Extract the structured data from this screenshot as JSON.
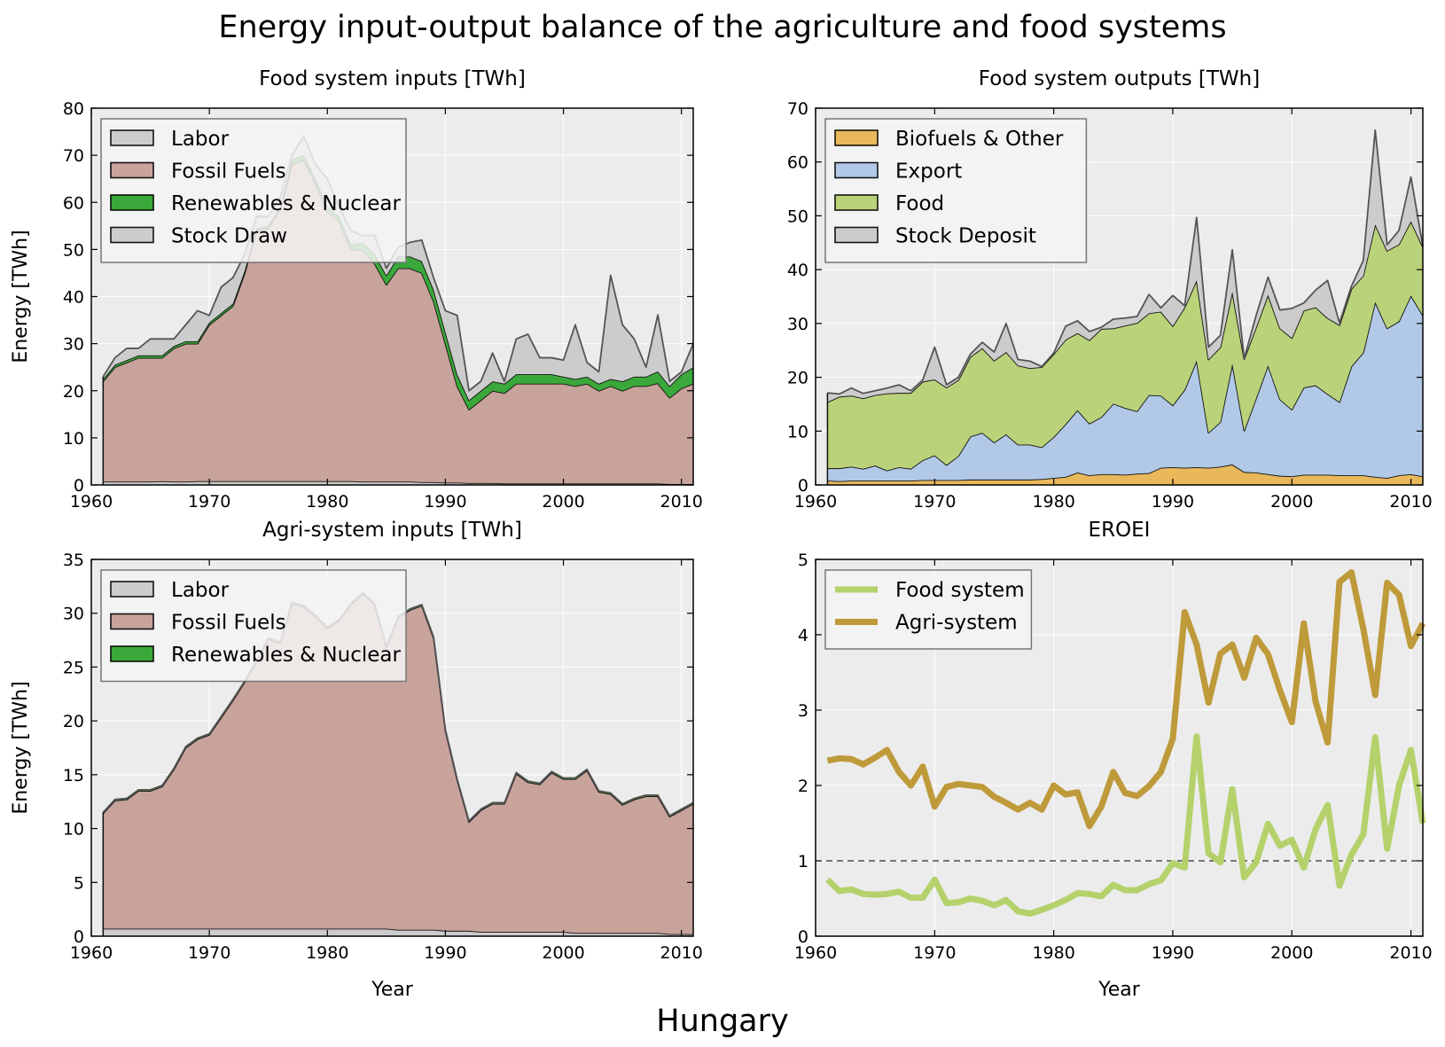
{
  "figure": {
    "title": "Energy input-output balance of the agriculture and food systems",
    "footer": "Hungary"
  },
  "chart_data": [
    {
      "type": "area",
      "stacked": true,
      "title": "Food system inputs [TWh]",
      "xlabel": "",
      "ylabel": "Energy [TWh]",
      "xlim": [
        1960,
        2011
      ],
      "ylim": [
        0,
        80
      ],
      "xticks": [
        1960,
        1970,
        1980,
        1990,
        2000,
        2010
      ],
      "yticks": [
        0,
        10,
        20,
        30,
        40,
        50,
        60,
        70,
        80
      ],
      "grid": true,
      "legend": "top-left",
      "x": [
        1961,
        1962,
        1963,
        1964,
        1965,
        1966,
        1967,
        1968,
        1969,
        1970,
        1971,
        1972,
        1973,
        1974,
        1975,
        1976,
        1977,
        1978,
        1979,
        1980,
        1981,
        1982,
        1983,
        1984,
        1985,
        1986,
        1987,
        1988,
        1989,
        1990,
        1991,
        1992,
        1993,
        1994,
        1995,
        1996,
        1997,
        1998,
        1999,
        2000,
        2001,
        2002,
        2003,
        2004,
        2005,
        2006,
        2007,
        2008,
        2009,
        2010,
        2011
      ],
      "series": [
        {
          "name": "Labor",
          "color": "#cccccc",
          "values": [
            0.7,
            0.7,
            0.7,
            0.7,
            0.7,
            0.8,
            0.7,
            0.7,
            0.8,
            0.8,
            0.8,
            0.8,
            0.8,
            0.8,
            0.8,
            0.8,
            0.8,
            0.8,
            0.8,
            0.8,
            0.8,
            0.8,
            0.7,
            0.7,
            0.7,
            0.7,
            0.7,
            0.6,
            0.6,
            0.5,
            0.5,
            0.4,
            0.4,
            0.4,
            0.3,
            0.3,
            0.3,
            0.3,
            0.3,
            0.3,
            0.3,
            0.3,
            0.3,
            0.3,
            0.3,
            0.3,
            0.3,
            0.3,
            0.2,
            0.2,
            0.2
          ]
        },
        {
          "name": "Fossil Fuels",
          "color": "#c8a39b",
          "values": [
            21.3,
            24.3,
            25.3,
            26.3,
            26.3,
            26.2,
            28.3,
            29.3,
            29.2,
            33.2,
            35.2,
            37.2,
            44.2,
            53.2,
            53.7,
            57.7,
            67.2,
            68.2,
            63.2,
            57.2,
            55.2,
            49.2,
            49.2,
            46.3,
            41.8,
            45.3,
            45.3,
            44.4,
            38.4,
            29.5,
            20.5,
            15.6,
            17.6,
            19.6,
            19.2,
            21.2,
            21.2,
            21.2,
            21.2,
            21.2,
            20.7,
            21.2,
            19.7,
            20.7,
            19.7,
            20.7,
            20.7,
            21.3,
            18.3,
            20.3,
            21.3
          ]
        },
        {
          "name": "Renewables & Nuclear",
          "color": "#3aa83a",
          "values": [
            0.5,
            0.5,
            0.5,
            0.5,
            0.5,
            0.5,
            0.5,
            0.5,
            0.5,
            0.5,
            0.5,
            0.5,
            0.5,
            0.5,
            0.5,
            0.5,
            1.0,
            1.0,
            1.0,
            1.0,
            1.0,
            1.0,
            1.5,
            2.0,
            2.0,
            2.5,
            2.5,
            2.5,
            2.5,
            2.5,
            2.5,
            2.0,
            2.0,
            2.0,
            2.0,
            2.0,
            2.0,
            2.0,
            2.0,
            1.5,
            1.5,
            1.5,
            1.5,
            1.5,
            2.0,
            2.0,
            2.0,
            2.5,
            2.5,
            3.0,
            3.5
          ]
        },
        {
          "name": "Stock Draw",
          "color": "#cccccc",
          "values": [
            0.5,
            1.5,
            2.5,
            1.5,
            3.5,
            3.5,
            1.5,
            3.5,
            6.5,
            1.5,
            5.5,
            5.5,
            3.5,
            2.5,
            2.0,
            2.0,
            1.0,
            4.0,
            3.0,
            6.0,
            2.0,
            3.0,
            1.5,
            4.0,
            1.5,
            2.0,
            3.0,
            4.5,
            2.5,
            4.5,
            12.5,
            2.0,
            2.0,
            6.0,
            0.5,
            7.5,
            8.5,
            3.5,
            3.5,
            3.5,
            11.5,
            3.0,
            2.5,
            22.0,
            12.0,
            8.0,
            2.0,
            12.0,
            1.0,
            0.5,
            5.0
          ]
        }
      ]
    },
    {
      "type": "area",
      "stacked": true,
      "title": "Food system outputs [TWh]",
      "xlabel": "",
      "ylabel": "",
      "xlim": [
        1960,
        2011
      ],
      "ylim": [
        0,
        70
      ],
      "xticks": [
        1960,
        1970,
        1980,
        1990,
        2000,
        2010
      ],
      "yticks": [
        0,
        10,
        20,
        30,
        40,
        50,
        60,
        70
      ],
      "grid": true,
      "legend": "top-left",
      "x": [
        1961,
        1962,
        1963,
        1964,
        1965,
        1966,
        1967,
        1968,
        1969,
        1970,
        1971,
        1972,
        1973,
        1974,
        1975,
        1976,
        1977,
        1978,
        1979,
        1980,
        1981,
        1982,
        1983,
        1984,
        1985,
        1986,
        1987,
        1988,
        1989,
        1990,
        1991,
        1992,
        1993,
        1994,
        1995,
        1996,
        1997,
        1998,
        1999,
        2000,
        2001,
        2002,
        2003,
        2004,
        2005,
        2006,
        2007,
        2008,
        2009,
        2010,
        2011
      ],
      "series": [
        {
          "name": "Biofuels & Other",
          "color": "#e8b85a",
          "values": [
            0.8,
            0.7,
            0.8,
            0.8,
            0.8,
            0.8,
            0.8,
            0.8,
            0.9,
            0.9,
            0.9,
            0.9,
            1.0,
            1.0,
            1.0,
            1.0,
            1.0,
            1.0,
            1.1,
            1.3,
            1.5,
            2.3,
            1.8,
            2.0,
            2.0,
            1.9,
            2.1,
            2.2,
            3.2,
            3.3,
            3.2,
            3.3,
            3.2,
            3.4,
            3.8,
            2.4,
            2.3,
            2.0,
            1.7,
            1.6,
            1.9,
            1.9,
            1.9,
            1.8,
            1.8,
            1.8,
            1.5,
            1.3,
            1.8,
            2.0,
            1.6
          ]
        },
        {
          "name": "Export",
          "color": "#b1c9e7",
          "values": [
            2.3,
            2.4,
            2.6,
            2.2,
            2.8,
            1.9,
            2.5,
            2.2,
            3.7,
            4.6,
            2.8,
            4.5,
            8.0,
            8.7,
            6.9,
            8.4,
            6.5,
            6.5,
            5.9,
            7.6,
            9.8,
            11.6,
            9.6,
            10.6,
            13.1,
            12.4,
            11.6,
            14.5,
            13.4,
            11.5,
            14.5,
            19.8,
            6.5,
            8.3,
            18.7,
            7.7,
            13.8,
            20.2,
            14.2,
            12.4,
            16.2,
            16.6,
            15.0,
            13.6,
            20.2,
            22.8,
            32.5,
            27.8,
            28.6,
            33.2,
            29.9
          ]
        },
        {
          "name": "Food",
          "color": "#bad27a",
          "values": [
            12.3,
            13.3,
            13.2,
            13.1,
            13.1,
            14.3,
            13.8,
            14.1,
            14.6,
            14.1,
            14.4,
            14.1,
            14.8,
            15.7,
            15.2,
            15.3,
            14.7,
            14.2,
            14.9,
            15.4,
            15.7,
            14.3,
            15.5,
            16.4,
            14.0,
            15.3,
            16.4,
            15.2,
            15.6,
            14.7,
            15.3,
            14.9,
            13.6,
            13.9,
            13.4,
            13.3,
            13.2,
            13.1,
            13.2,
            13.3,
            14.3,
            14.5,
            14.1,
            14.3,
            14.4,
            14.3,
            14.4,
            14.4,
            14.3,
            13.8,
            12.7
          ]
        },
        {
          "name": "Stock Deposit",
          "color": "#cccccc",
          "values": [
            1.7,
            0.5,
            1.4,
            0.9,
            0.8,
            1.0,
            1.5,
            0.4,
            0.3,
            6.0,
            0.5,
            0.5,
            0.5,
            1.1,
            1.6,
            5.3,
            1.1,
            1.3,
            0.1,
            0.2,
            2.5,
            2.3,
            1.6,
            0.3,
            1.7,
            1.4,
            1.2,
            3.5,
            0.7,
            5.7,
            0.3,
            11.7,
            2.3,
            2.2,
            7.8,
            0.1,
            2.2,
            3.3,
            3.4,
            5.5,
            1.4,
            3.2,
            7.0,
            0.4,
            0.5,
            2.8,
            17.5,
            1.1,
            2.6,
            8.2,
            0.1
          ]
        }
      ]
    },
    {
      "type": "area",
      "stacked": true,
      "title": "Agri-system inputs [TWh]",
      "xlabel": "Year",
      "ylabel": "Energy [TWh]",
      "xlim": [
        1960,
        2011
      ],
      "ylim": [
        0,
        35
      ],
      "xticks": [
        1960,
        1970,
        1980,
        1990,
        2000,
        2010
      ],
      "yticks": [
        0,
        5,
        10,
        15,
        20,
        25,
        30,
        35
      ],
      "grid": true,
      "legend": "top-left",
      "x": [
        1961,
        1962,
        1963,
        1964,
        1965,
        1966,
        1967,
        1968,
        1969,
        1970,
        1971,
        1972,
        1973,
        1974,
        1975,
        1976,
        1977,
        1978,
        1979,
        1980,
        1981,
        1982,
        1983,
        1984,
        1985,
        1986,
        1987,
        1988,
        1989,
        1990,
        1991,
        1992,
        1993,
        1994,
        1995,
        1996,
        1997,
        1998,
        1999,
        2000,
        2001,
        2002,
        2003,
        2004,
        2005,
        2006,
        2007,
        2008,
        2009,
        2010,
        2011
      ],
      "series": [
        {
          "name": "Labor",
          "color": "#cccccc",
          "values": [
            0.7,
            0.7,
            0.7,
            0.7,
            0.7,
            0.7,
            0.7,
            0.7,
            0.7,
            0.7,
            0.7,
            0.7,
            0.7,
            0.7,
            0.7,
            0.7,
            0.7,
            0.7,
            0.7,
            0.7,
            0.7,
            0.7,
            0.7,
            0.7,
            0.7,
            0.6,
            0.6,
            0.6,
            0.6,
            0.5,
            0.5,
            0.5,
            0.4,
            0.4,
            0.4,
            0.4,
            0.4,
            0.4,
            0.4,
            0.4,
            0.3,
            0.3,
            0.3,
            0.3,
            0.3,
            0.3,
            0.3,
            0.3,
            0.2,
            0.2,
            0.2
          ]
        },
        {
          "name": "Fossil Fuels",
          "color": "#c8a39b",
          "values": [
            10.7,
            11.9,
            12.0,
            12.8,
            12.8,
            13.2,
            14.8,
            16.8,
            17.6,
            18.0,
            19.6,
            21.2,
            22.9,
            24.8,
            26.9,
            26.5,
            30.2,
            29.9,
            29.0,
            27.9,
            28.6,
            30.1,
            31.1,
            30.1,
            26.1,
            29.0,
            29.7,
            30.1,
            27.1,
            18.6,
            14.0,
            10.1,
            11.3,
            11.9,
            11.9,
            14.7,
            13.9,
            13.7,
            14.8,
            14.2,
            14.3,
            15.1,
            13.1,
            12.9,
            11.9,
            12.4,
            12.7,
            12.7,
            10.9,
            11.5,
            12.1
          ]
        },
        {
          "name": "Renewables & Nuclear",
          "color": "#3aa83a",
          "values": [
            0.1,
            0.1,
            0.1,
            0.1,
            0.1,
            0.1,
            0.1,
            0.1,
            0.1,
            0.1,
            0.1,
            0.1,
            0.1,
            0.1,
            0.1,
            0.1,
            0.1,
            0.1,
            0.1,
            0.1,
            0.1,
            0.1,
            0.1,
            0.1,
            0.1,
            0.1,
            0.1,
            0.1,
            0.1,
            0.1,
            0.1,
            0.1,
            0.1,
            0.1,
            0.1,
            0.1,
            0.1,
            0.1,
            0.1,
            0.1,
            0.1,
            0.1,
            0.1,
            0.1,
            0.1,
            0.1,
            0.1,
            0.1,
            0.1,
            0.1,
            0.1
          ]
        }
      ]
    },
    {
      "type": "line",
      "title": "EROEI",
      "xlabel": "Year",
      "ylabel": "",
      "xlim": [
        1960,
        2011
      ],
      "ylim": [
        0,
        5
      ],
      "xticks": [
        1960,
        1970,
        1980,
        1990,
        2000,
        2010
      ],
      "yticks": [
        0,
        1,
        2,
        3,
        4,
        5
      ],
      "grid": true,
      "legend": "top-left",
      "reference_line": 1,
      "x": [
        1961,
        1962,
        1963,
        1964,
        1965,
        1966,
        1967,
        1968,
        1969,
        1970,
        1971,
        1972,
        1973,
        1974,
        1975,
        1976,
        1977,
        1978,
        1979,
        1980,
        1981,
        1982,
        1983,
        1984,
        1985,
        1986,
        1987,
        1988,
        1989,
        1990,
        1991,
        1992,
        1993,
        1994,
        1995,
        1996,
        1997,
        1998,
        1999,
        2000,
        2001,
        2002,
        2003,
        2004,
        2005,
        2006,
        2007,
        2008,
        2009,
        2010,
        2011
      ],
      "series": [
        {
          "name": "Food system",
          "color": "#b5d16b",
          "values": [
            0.75,
            0.6,
            0.62,
            0.56,
            0.55,
            0.56,
            0.59,
            0.51,
            0.51,
            0.75,
            0.44,
            0.45,
            0.5,
            0.47,
            0.41,
            0.48,
            0.33,
            0.3,
            0.35,
            0.41,
            0.48,
            0.57,
            0.56,
            0.53,
            0.68,
            0.61,
            0.61,
            0.69,
            0.74,
            0.97,
            0.91,
            2.65,
            1.1,
            0.98,
            1.95,
            0.78,
            0.98,
            1.49,
            1.2,
            1.28,
            0.91,
            1.42,
            1.74,
            0.67,
            1.08,
            1.35,
            2.64,
            1.16,
            2.0,
            2.47,
            1.5
          ]
        },
        {
          "name": "Agri-system",
          "color": "#bf9a3a",
          "values": [
            2.33,
            2.36,
            2.35,
            2.28,
            2.37,
            2.47,
            2.18,
            2.0,
            2.25,
            1.72,
            1.98,
            2.02,
            2.0,
            1.98,
            1.85,
            1.77,
            1.68,
            1.77,
            1.68,
            2.0,
            1.88,
            1.91,
            1.46,
            1.72,
            2.18,
            1.9,
            1.86,
            1.99,
            2.18,
            2.62,
            4.3,
            3.87,
            3.1,
            3.75,
            3.87,
            3.43,
            3.96,
            3.74,
            3.26,
            2.84,
            4.15,
            3.11,
            2.57,
            4.7,
            4.83,
            4.08,
            3.2,
            4.69,
            4.53,
            3.85,
            4.15
          ]
        }
      ]
    }
  ]
}
